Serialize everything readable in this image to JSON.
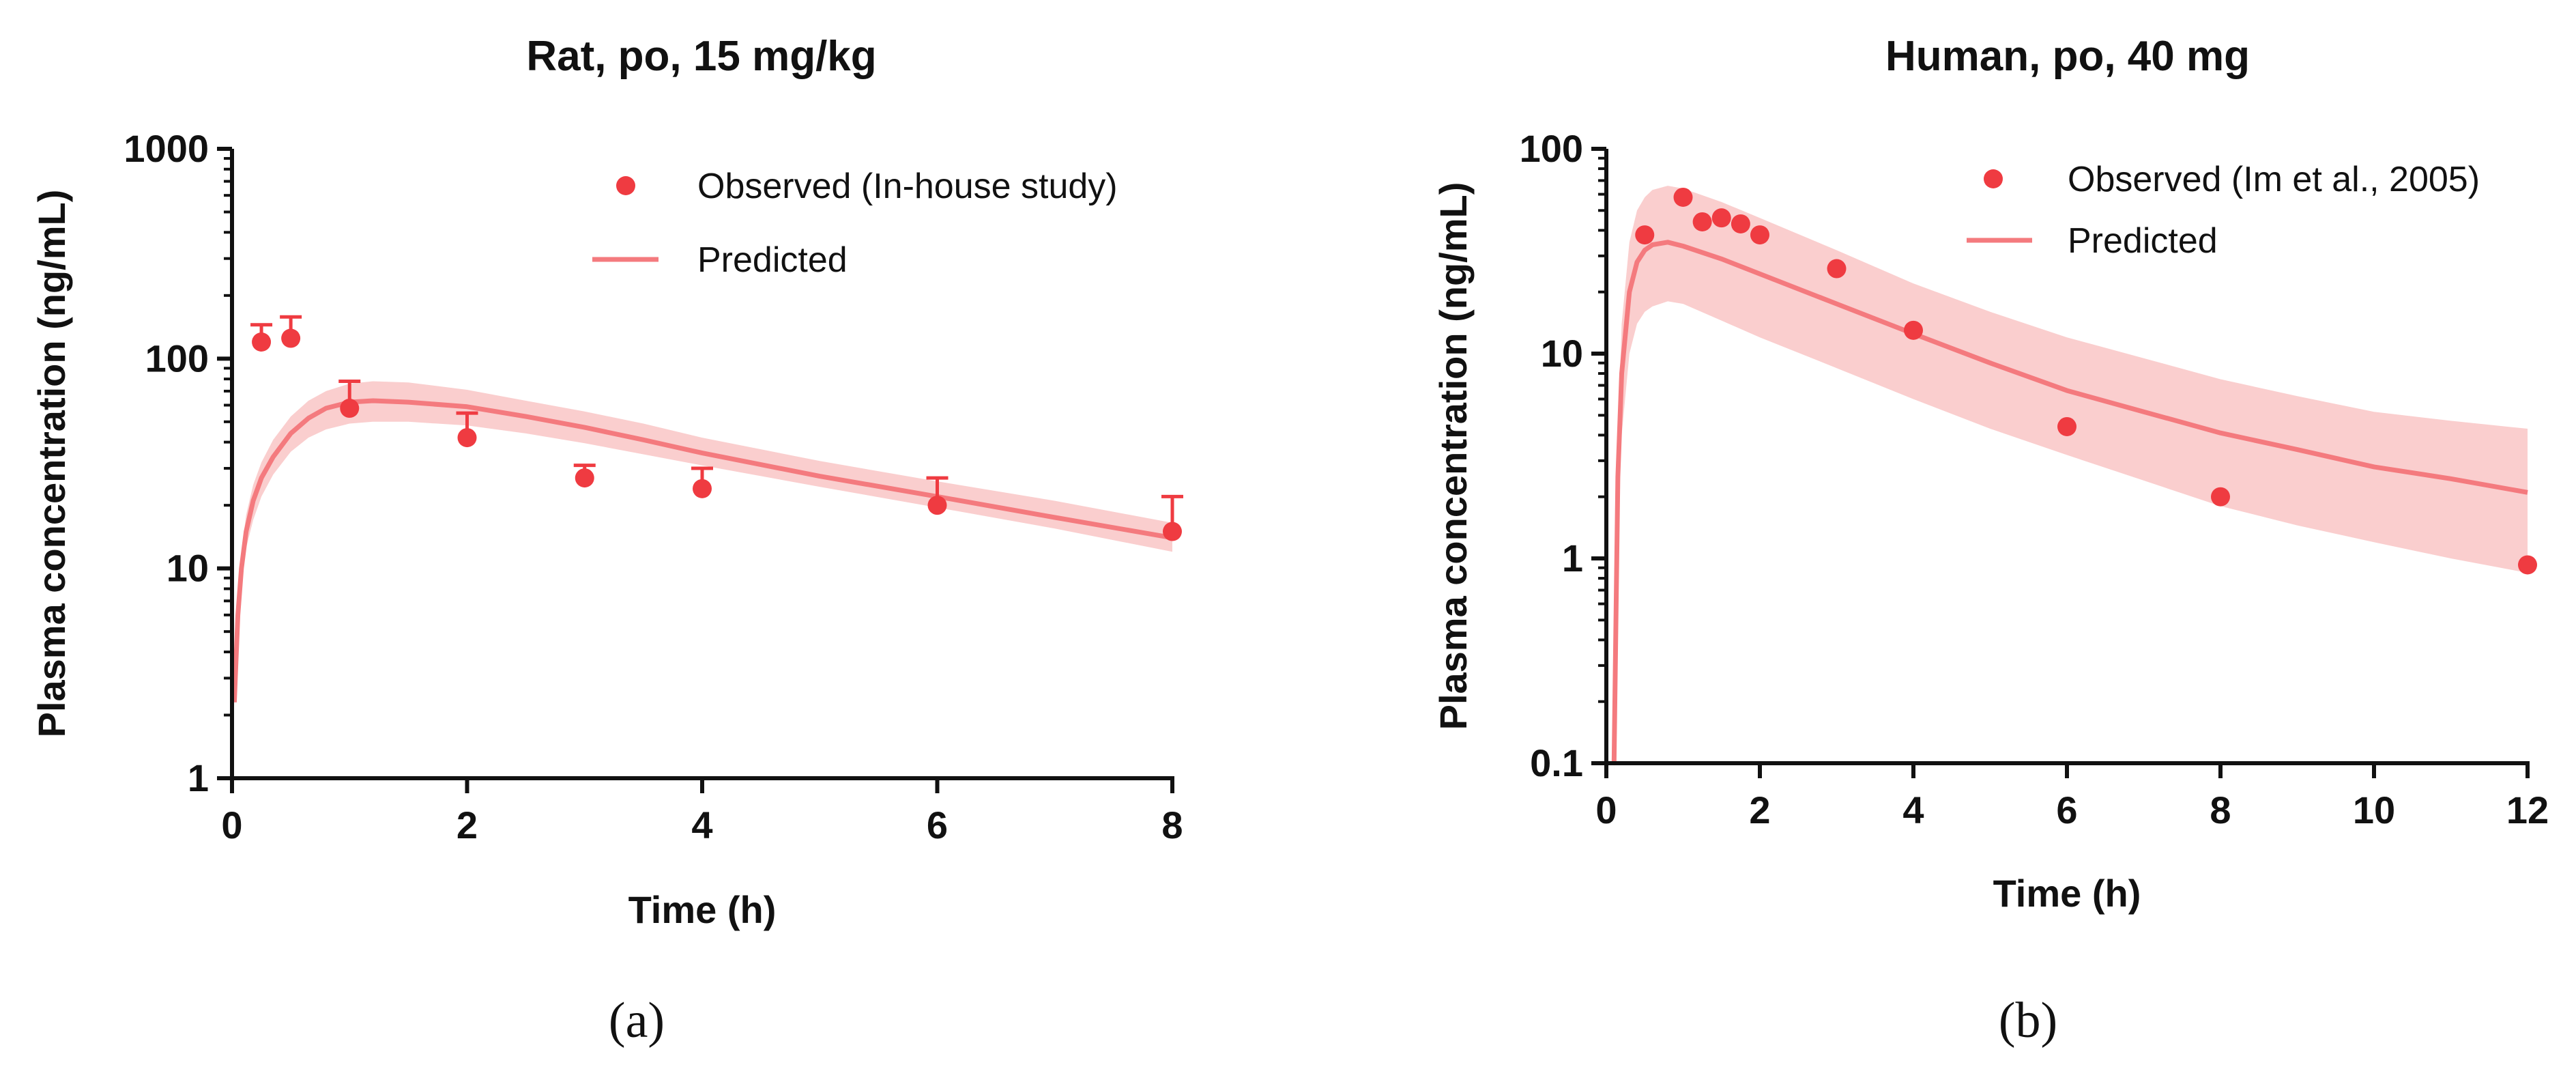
{
  "colors": {
    "observed": "#ef3b41",
    "predicted": "#f47a7e",
    "band": "#f9c6c6",
    "axis": "#111111"
  },
  "chart_data": [
    {
      "type": "scatter",
      "panel_label": "(a)",
      "title": "Rat, po, 15 mg/kg",
      "xlabel": "Time (h)",
      "ylabel": "Plasma concentration (ng/mL)",
      "xscale": "linear",
      "yscale": "log",
      "xlim": [
        0,
        8
      ],
      "ylim": [
        1,
        1000
      ],
      "xticks": [
        0,
        2,
        4,
        6,
        8
      ],
      "xtick_labels": [
        "0",
        "2",
        "4",
        "6",
        "8"
      ],
      "yticks": [
        1,
        10,
        100,
        1000
      ],
      "ytick_labels": [
        "1",
        "10",
        "100",
        "1000"
      ],
      "grid": false,
      "legend_position": "top-right",
      "legend": [
        {
          "label": "Observed (In-house study)",
          "kind": "marker"
        },
        {
          "label": "Predicted",
          "kind": "line"
        }
      ],
      "observed": {
        "name": "Observed (In-house study)",
        "x": [
          0.25,
          0.5,
          1,
          2,
          3,
          4,
          6,
          8
        ],
        "y": [
          120,
          125,
          58,
          42,
          27,
          24,
          20,
          15
        ],
        "error_upper": [
          145,
          158,
          78,
          55,
          31,
          30,
          27,
          22
        ]
      },
      "predicted": {
        "name": "Predicted",
        "x": [
          0.02,
          0.05,
          0.08,
          0.12,
          0.18,
          0.25,
          0.35,
          0.5,
          0.65,
          0.8,
          1.0,
          1.2,
          1.5,
          2.0,
          2.5,
          3.0,
          3.5,
          4.0,
          5.0,
          6.0,
          7.0,
          8.0
        ],
        "y": [
          2.3,
          6,
          10,
          15,
          21,
          27,
          34,
          44,
          52,
          58,
          62,
          63,
          62,
          59,
          53,
          47,
          41,
          35.5,
          27.5,
          22,
          17.5,
          14
        ],
        "band_lower": [
          2.2,
          5,
          8.5,
          12.5,
          17,
          22,
          28,
          36,
          42,
          46,
          49,
          50,
          50,
          48,
          44,
          39.5,
          35,
          31,
          24.5,
          19.5,
          15.5,
          12
        ],
        "band_upper": [
          2.5,
          7,
          12,
          18,
          25,
          32,
          41,
          53,
          63,
          70,
          76,
          78,
          77,
          71,
          63,
          56,
          49,
          42,
          32.5,
          26,
          21,
          16.5
        ]
      }
    },
    {
      "type": "scatter",
      "panel_label": "(b)",
      "title": "Human, po, 40 mg",
      "xlabel": "Time (h)",
      "ylabel": "Plasma concentration (ng/mL)",
      "xscale": "linear",
      "yscale": "log",
      "xlim": [
        0,
        12
      ],
      "ylim": [
        0.1,
        100
      ],
      "xticks": [
        0,
        2,
        4,
        6,
        8,
        10,
        12
      ],
      "xtick_labels": [
        "0",
        "2",
        "4",
        "6",
        "8",
        "10",
        "12"
      ],
      "yticks": [
        0.1,
        1,
        10,
        100
      ],
      "ytick_labels": [
        "0.1",
        "1",
        "10",
        "100"
      ],
      "grid": false,
      "legend_position": "top-right",
      "legend": [
        {
          "label": "Observed (Im et al., 2005)",
          "kind": "marker"
        },
        {
          "label": "Predicted",
          "kind": "line"
        }
      ],
      "observed": {
        "name": "Observed (Im et al., 2005)",
        "x": [
          0.5,
          1.0,
          1.25,
          1.5,
          1.75,
          2.0,
          3.0,
          4.0,
          6.0,
          8.0,
          12.0
        ],
        "y": [
          38,
          58,
          44,
          46,
          43,
          38,
          26,
          13,
          4.4,
          2.0,
          0.93
        ]
      },
      "predicted": {
        "name": "Predicted",
        "x": [
          0.1,
          0.15,
          0.2,
          0.3,
          0.4,
          0.5,
          0.6,
          0.8,
          1.0,
          1.5,
          2.0,
          3.0,
          4.0,
          5.0,
          6.0,
          7.0,
          8.0,
          9.0,
          10.0,
          11.0,
          12.0
        ],
        "y": [
          0.1,
          2.5,
          8,
          20,
          28,
          32,
          34,
          35,
          33.5,
          29,
          24.5,
          17.5,
          12.5,
          9,
          6.6,
          5.2,
          4.1,
          3.4,
          2.8,
          2.45,
          2.1
        ],
        "band_lower": [
          0.09,
          1.5,
          4,
          10,
          14,
          16,
          17,
          18,
          17.5,
          14.5,
          12,
          8.5,
          6,
          4.3,
          3.2,
          2.4,
          1.8,
          1.45,
          1.2,
          1.0,
          0.85
        ],
        "band_upper": [
          0.12,
          4,
          14,
          35,
          50,
          58,
          63,
          66,
          64,
          55,
          46,
          32,
          22,
          16,
          12,
          9.5,
          7.5,
          6.2,
          5.2,
          4.7,
          4.3
        ]
      }
    }
  ]
}
